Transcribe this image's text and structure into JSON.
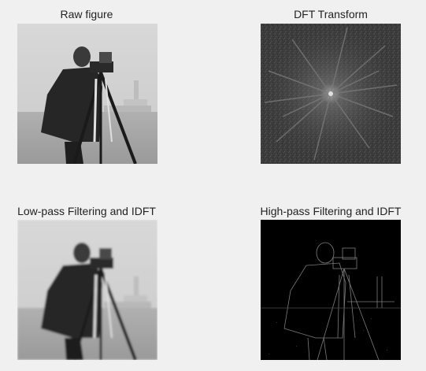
{
  "figure": {
    "panels": [
      {
        "title": "Raw figure"
      },
      {
        "title": "DFT Transform"
      },
      {
        "title": "Low-pass Filtering and IDFT"
      },
      {
        "title": "High-pass Filtering and IDFT"
      }
    ]
  }
}
